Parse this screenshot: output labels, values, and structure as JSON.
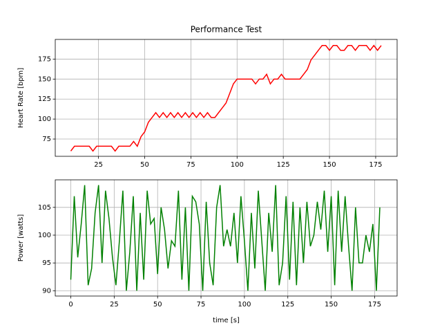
{
  "chart_data": [
    {
      "type": "line",
      "title": "Performance Test",
      "ylabel": "Heart Rate [bpm]",
      "grid": true,
      "x": [
        10,
        12,
        14,
        16,
        18,
        20,
        22,
        24,
        26,
        28,
        30,
        32,
        34,
        36,
        38,
        40,
        42,
        44,
        46,
        48,
        50,
        52,
        54,
        56,
        58,
        60,
        62,
        64,
        66,
        68,
        70,
        72,
        74,
        76,
        78,
        80,
        82,
        84,
        86,
        88,
        90,
        92,
        94,
        96,
        98,
        100,
        102,
        104,
        106,
        108,
        110,
        112,
        114,
        116,
        118,
        120,
        122,
        124,
        126,
        128,
        130,
        132,
        134,
        136,
        138,
        140,
        142,
        144,
        146,
        148,
        150,
        152,
        154,
        156,
        158,
        160,
        162,
        164,
        166,
        168,
        170,
        172,
        174,
        176,
        178
      ],
      "series": [
        {
          "color": "#ff0000",
          "values": [
            60,
            66,
            66,
            66,
            66,
            66,
            60,
            66,
            66,
            66,
            66,
            66,
            60,
            66,
            66,
            66,
            66,
            72,
            66,
            78,
            84,
            96,
            102,
            108,
            102,
            108,
            102,
            108,
            102,
            108,
            102,
            108,
            102,
            108,
            102,
            108,
            102,
            108,
            102,
            102,
            108,
            114,
            120,
            132,
            144,
            150,
            150,
            150,
            150,
            150,
            144,
            150,
            150,
            156,
            144,
            150,
            150,
            156,
            150,
            150,
            150,
            150,
            150,
            156,
            162,
            174,
            180,
            186,
            192,
            192,
            186,
            192,
            192,
            186,
            186,
            192,
            192,
            186,
            192,
            192,
            192,
            186,
            192,
            186,
            192
          ]
        }
      ],
      "xlim": [
        1.6,
        186.6
      ],
      "xticks": [
        25,
        50,
        75,
        100,
        125,
        150,
        175
      ],
      "ylim": [
        53.4,
        199.6
      ],
      "yticks": [
        75,
        100,
        125,
        150,
        175
      ]
    },
    {
      "type": "line",
      "xlabel": "time [s]",
      "ylabel": "Power [watts]",
      "grid": true,
      "x": [
        0,
        2,
        4,
        6,
        8,
        10,
        12,
        14,
        16,
        18,
        20,
        22,
        24,
        26,
        28,
        30,
        32,
        34,
        36,
        38,
        40,
        42,
        44,
        46,
        48,
        50,
        52,
        54,
        56,
        58,
        60,
        62,
        64,
        66,
        68,
        70,
        72,
        74,
        76,
        78,
        80,
        82,
        84,
        86,
        88,
        90,
        92,
        94,
        96,
        98,
        100,
        102,
        104,
        106,
        108,
        110,
        112,
        114,
        116,
        118,
        120,
        122,
        124,
        126,
        128,
        130,
        132,
        134,
        136,
        138,
        140,
        142,
        144,
        146,
        148,
        150,
        152,
        154,
        156,
        158,
        160,
        162,
        164,
        166,
        168,
        170,
        172,
        174,
        176,
        178
      ],
      "series": [
        {
          "color": "#008000",
          "values": [
            92,
            107,
            96,
            102,
            109,
            91,
            94,
            104,
            109,
            95,
            108,
            103,
            96,
            91,
            99,
            108,
            90,
            97,
            107,
            90,
            104,
            92,
            108,
            102,
            103,
            93,
            105,
            101,
            94,
            99,
            98,
            108,
            92,
            105,
            90,
            107,
            106,
            102,
            90,
            106,
            95,
            91,
            105,
            109,
            98,
            101,
            98,
            104,
            95,
            107,
            99,
            90,
            104,
            94,
            108,
            99,
            90,
            104,
            97,
            109,
            91,
            95,
            107,
            92,
            106,
            91,
            105,
            95,
            106,
            98,
            100,
            106,
            101,
            108,
            97,
            107,
            91,
            108,
            97,
            107,
            98,
            90,
            105,
            95,
            95,
            100,
            97,
            102,
            90,
            105
          ]
        }
      ],
      "xlim": [
        -8.95,
        187.95
      ],
      "xticks": [
        0,
        25,
        50,
        75,
        100,
        125,
        150,
        175
      ],
      "ylim": [
        89.05,
        109.95
      ],
      "yticks": [
        90,
        95,
        100,
        105
      ]
    }
  ]
}
